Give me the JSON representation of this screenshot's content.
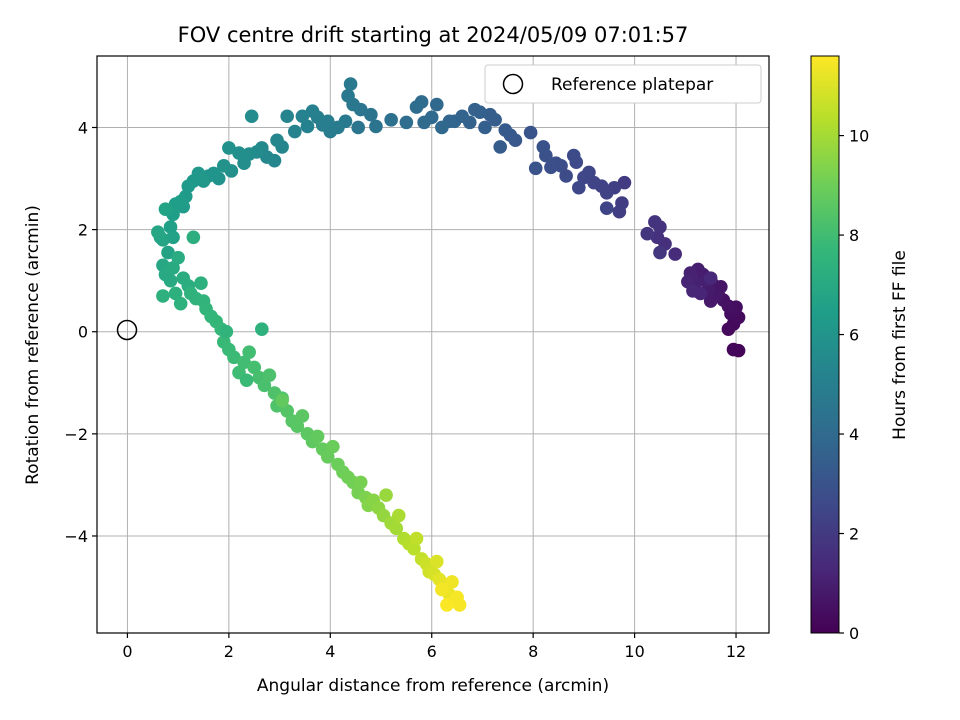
{
  "chart_data": {
    "type": "scatter",
    "title": "FOV centre drift starting at 2024/05/09 07:01:57",
    "xlabel": "Angular distance from reference (arcmin)",
    "ylabel": "Rotation from reference (arcmin)",
    "xlim": [
      -0.6,
      12.65
    ],
    "ylim": [
      -5.9,
      5.4
    ],
    "xticks": [
      0,
      2,
      4,
      6,
      8,
      10,
      12
    ],
    "yticks": [
      -4,
      -2,
      0,
      2,
      4
    ],
    "xtick_labels": [
      "0",
      "2",
      "4",
      "6",
      "8",
      "10",
      "12"
    ],
    "ytick_labels": [
      "−4",
      "−2",
      "0",
      "2",
      "4"
    ],
    "grid": true,
    "legend": {
      "placement": "top-right",
      "entries": [
        "Reference platepar"
      ]
    },
    "reference_point": {
      "x": 0,
      "y": 0,
      "label": "Reference platepar"
    },
    "colorbar": {
      "label": "Hours from first FF file",
      "range": [
        0,
        11.6
      ],
      "ticks": [
        0,
        2,
        4,
        6,
        8,
        10
      ],
      "tick_labels": [
        "0",
        "2",
        "4",
        "6",
        "8",
        "10"
      ],
      "colormap": "viridis",
      "colormap_stops": [
        "#440154",
        "#482878",
        "#3e4989",
        "#31688e",
        "#26828e",
        "#1f9e89",
        "#35b779",
        "#6ece58",
        "#b5de2b",
        "#fde725"
      ]
    },
    "series": [
      {
        "points": [
          [
            12.05,
            -0.37
          ],
          [
            11.95,
            -0.35
          ],
          [
            11.95,
            0.15
          ],
          [
            11.85,
            0.05
          ],
          [
            12.05,
            0.28
          ],
          [
            11.9,
            0.35
          ],
          [
            12.0,
            0.48
          ],
          [
            11.85,
            0.5
          ],
          [
            11.75,
            0.62
          ],
          [
            11.65,
            0.72
          ],
          [
            11.7,
            0.88
          ],
          [
            11.55,
            0.92
          ],
          [
            11.6,
            0.7
          ],
          [
            11.5,
            0.6
          ],
          [
            11.45,
            0.82
          ],
          [
            11.35,
            1.12
          ],
          [
            11.25,
            1.22
          ],
          [
            11.4,
            1.0
          ],
          [
            11.2,
            0.95
          ],
          [
            11.1,
            1.15
          ],
          [
            11.05,
            0.98
          ],
          [
            11.3,
            0.75
          ],
          [
            11.15,
            0.8
          ],
          [
            11.5,
            1.05
          ],
          [
            10.8,
            1.52
          ],
          [
            10.6,
            1.72
          ],
          [
            10.45,
            1.85
          ],
          [
            10.5,
            2.05
          ],
          [
            10.4,
            2.15
          ],
          [
            10.25,
            1.92
          ],
          [
            10.5,
            1.55
          ],
          [
            9.8,
            2.92
          ],
          [
            9.75,
            2.52
          ],
          [
            9.7,
            2.35
          ],
          [
            9.6,
            2.82
          ],
          [
            9.45,
            2.72
          ],
          [
            9.35,
            2.85
          ],
          [
            9.2,
            2.92
          ],
          [
            9.45,
            2.42
          ],
          [
            9.1,
            3.12
          ],
          [
            9.0,
            3.02
          ],
          [
            8.9,
            2.82
          ],
          [
            8.85,
            3.32
          ],
          [
            8.8,
            3.45
          ],
          [
            8.65,
            3.05
          ],
          [
            8.55,
            3.25
          ],
          [
            8.45,
            3.3
          ],
          [
            8.35,
            3.22
          ],
          [
            8.25,
            3.45
          ],
          [
            8.2,
            3.62
          ],
          [
            8.05,
            3.2
          ],
          [
            7.95,
            3.9
          ],
          [
            7.65,
            3.75
          ],
          [
            7.55,
            3.85
          ],
          [
            7.45,
            3.95
          ],
          [
            7.35,
            3.62
          ],
          [
            7.25,
            4.15
          ],
          [
            7.15,
            4.25
          ],
          [
            7.05,
            4.0
          ],
          [
            6.95,
            4.3
          ],
          [
            6.85,
            4.35
          ],
          [
            6.75,
            4.1
          ],
          [
            6.6,
            4.22
          ],
          [
            6.45,
            4.12
          ],
          [
            6.35,
            4.12
          ],
          [
            6.2,
            4.0
          ],
          [
            6.1,
            4.45
          ],
          [
            6.0,
            4.2
          ],
          [
            5.85,
            4.1
          ],
          [
            5.8,
            4.5
          ],
          [
            5.7,
            4.4
          ],
          [
            5.5,
            4.1
          ],
          [
            5.2,
            4.15
          ],
          [
            4.9,
            4.02
          ],
          [
            4.8,
            4.25
          ],
          [
            4.6,
            4.35
          ],
          [
            4.55,
            4.0
          ],
          [
            4.45,
            4.45
          ],
          [
            4.35,
            4.62
          ],
          [
            4.4,
            4.85
          ],
          [
            4.3,
            4.12
          ],
          [
            4.15,
            4.0
          ],
          [
            4.0,
            3.92
          ],
          [
            3.95,
            4.12
          ],
          [
            3.85,
            4.05
          ],
          [
            3.75,
            4.2
          ],
          [
            3.65,
            4.32
          ],
          [
            3.55,
            4.02
          ],
          [
            3.45,
            4.22
          ],
          [
            3.3,
            3.92
          ],
          [
            3.15,
            4.22
          ],
          [
            3.05,
            3.62
          ],
          [
            2.95,
            3.75
          ],
          [
            2.9,
            3.35
          ],
          [
            2.75,
            3.42
          ],
          [
            2.65,
            3.6
          ],
          [
            2.55,
            3.52
          ],
          [
            2.45,
            4.22
          ],
          [
            2.4,
            3.48
          ],
          [
            2.3,
            3.3
          ],
          [
            2.2,
            3.5
          ],
          [
            2.05,
            3.15
          ],
          [
            2.0,
            3.6
          ],
          [
            1.9,
            3.25
          ],
          [
            1.8,
            3.0
          ],
          [
            1.7,
            3.1
          ],
          [
            1.6,
            3.05
          ],
          [
            1.5,
            2.95
          ],
          [
            1.4,
            3.1
          ],
          [
            1.3,
            2.95
          ],
          [
            1.2,
            2.85
          ],
          [
            1.15,
            2.65
          ],
          [
            1.1,
            2.45
          ],
          [
            1.05,
            2.55
          ],
          [
            0.95,
            2.5
          ],
          [
            0.9,
            2.3
          ],
          [
            0.85,
            2.05
          ],
          [
            0.9,
            1.85
          ],
          [
            0.8,
            1.55
          ],
          [
            0.75,
            2.4
          ],
          [
            0.7,
            1.8
          ],
          [
            0.65,
            1.85
          ],
          [
            0.6,
            1.95
          ],
          [
            0.7,
            1.3
          ],
          [
            0.75,
            1.12
          ],
          [
            0.85,
            1.0
          ],
          [
            0.9,
            1.25
          ],
          [
            1.0,
            1.45
          ],
          [
            1.1,
            1.05
          ],
          [
            1.2,
            0.9
          ],
          [
            1.3,
            1.85
          ],
          [
            0.7,
            0.7
          ],
          [
            0.95,
            0.75
          ],
          [
            1.05,
            0.55
          ],
          [
            1.25,
            0.75
          ],
          [
            1.35,
            0.65
          ],
          [
            1.5,
            0.6
          ],
          [
            1.55,
            0.45
          ],
          [
            1.65,
            0.3
          ],
          [
            1.75,
            0.2
          ],
          [
            1.85,
            0.05
          ],
          [
            1.9,
            -0.2
          ],
          [
            2.0,
            -0.35
          ],
          [
            2.1,
            -0.5
          ],
          [
            2.2,
            -0.8
          ],
          [
            2.3,
            -0.6
          ],
          [
            2.4,
            -0.4
          ],
          [
            2.5,
            -0.7
          ],
          [
            2.6,
            -0.9
          ],
          [
            2.7,
            -1.05
          ],
          [
            2.8,
            -0.85
          ],
          [
            2.9,
            -1.2
          ],
          [
            2.95,
            -1.45
          ],
          [
            3.05,
            -1.3
          ],
          [
            3.15,
            -1.55
          ],
          [
            3.25,
            -1.75
          ],
          [
            3.35,
            -1.85
          ],
          [
            3.45,
            -1.65
          ],
          [
            3.55,
            -2.0
          ],
          [
            3.65,
            -2.15
          ],
          [
            3.75,
            -2.05
          ],
          [
            3.85,
            -2.3
          ],
          [
            3.95,
            -2.45
          ],
          [
            4.05,
            -2.25
          ],
          [
            4.15,
            -2.6
          ],
          [
            4.25,
            -2.75
          ],
          [
            4.35,
            -2.85
          ],
          [
            4.45,
            -2.95
          ],
          [
            4.55,
            -3.15
          ],
          [
            4.6,
            -2.95
          ],
          [
            4.7,
            -3.25
          ],
          [
            4.75,
            -3.4
          ],
          [
            4.85,
            -3.3
          ],
          [
            4.95,
            -3.45
          ],
          [
            5.05,
            -3.6
          ],
          [
            5.1,
            -3.2
          ],
          [
            5.2,
            -3.75
          ],
          [
            5.3,
            -3.85
          ],
          [
            5.35,
            -3.6
          ],
          [
            5.45,
            -4.05
          ],
          [
            5.55,
            -4.15
          ],
          [
            5.65,
            -4.25
          ],
          [
            5.7,
            -4.05
          ],
          [
            5.8,
            -4.45
          ],
          [
            5.9,
            -4.55
          ],
          [
            5.95,
            -4.7
          ],
          [
            6.05,
            -4.75
          ],
          [
            6.1,
            -4.5
          ],
          [
            6.15,
            -4.85
          ],
          [
            6.25,
            -4.95
          ],
          [
            6.35,
            -5.15
          ],
          [
            6.4,
            -4.9
          ],
          [
            6.5,
            -5.2
          ],
          [
            6.55,
            -5.35
          ],
          [
            6.3,
            -5.35
          ],
          [
            6.2,
            -5.05
          ],
          [
            3.05,
            -1.35
          ],
          [
            2.35,
            -0.95
          ],
          [
            1.95,
            0.0
          ],
          [
            2.65,
            0.05
          ],
          [
            1.45,
            0.95
          ]
        ],
        "hours": [
          0.1,
          0.15,
          0.25,
          0.3,
          0.35,
          0.4,
          0.45,
          0.5,
          0.55,
          0.6,
          0.65,
          0.7,
          0.75,
          0.8,
          0.85,
          0.9,
          0.95,
          1.0,
          1.05,
          1.1,
          1.15,
          1.2,
          1.25,
          1.3,
          1.45,
          1.55,
          1.65,
          1.7,
          1.75,
          1.8,
          1.85,
          2.05,
          2.1,
          2.15,
          2.2,
          2.25,
          2.3,
          2.35,
          2.4,
          2.45,
          2.5,
          2.55,
          2.6,
          2.65,
          2.7,
          2.75,
          2.8,
          2.85,
          2.9,
          2.95,
          3.0,
          3.05,
          3.2,
          3.25,
          3.3,
          3.35,
          3.4,
          3.45,
          3.5,
          3.55,
          3.6,
          3.65,
          3.7,
          3.75,
          3.8,
          3.85,
          3.9,
          3.95,
          4.0,
          4.05,
          4.1,
          4.15,
          4.3,
          4.4,
          4.45,
          4.5,
          4.55,
          4.6,
          4.65,
          4.7,
          4.75,
          4.8,
          4.85,
          4.9,
          4.95,
          5.0,
          5.05,
          5.1,
          5.15,
          5.2,
          5.25,
          5.3,
          5.35,
          5.4,
          5.45,
          5.5,
          5.55,
          5.6,
          5.65,
          5.7,
          5.75,
          5.8,
          5.85,
          5.9,
          5.95,
          6.0,
          6.05,
          6.1,
          6.15,
          6.2,
          6.25,
          6.3,
          6.35,
          6.4,
          6.45,
          6.5,
          6.55,
          6.6,
          6.65,
          6.7,
          6.75,
          6.8,
          6.85,
          6.9,
          6.95,
          7.0,
          7.05,
          7.1,
          7.15,
          7.2,
          7.25,
          7.3,
          7.35,
          7.4,
          7.45,
          7.5,
          7.55,
          7.6,
          7.65,
          7.7,
          7.75,
          7.8,
          7.85,
          7.9,
          7.95,
          8.0,
          8.05,
          8.1,
          8.15,
          8.2,
          8.25,
          8.3,
          8.35,
          8.4,
          8.45,
          8.5,
          8.55,
          8.6,
          8.65,
          8.7,
          8.75,
          8.8,
          8.85,
          8.9,
          8.95,
          9.0,
          9.05,
          9.1,
          9.15,
          9.2,
          9.3,
          9.4,
          9.5,
          9.6,
          9.7,
          9.8,
          9.9,
          10.0,
          10.1,
          10.2,
          10.3,
          10.4,
          10.5,
          10.6,
          10.7,
          10.8,
          10.9,
          11.0,
          11.1,
          11.2,
          11.3,
          11.35,
          11.45,
          11.5,
          11.55,
          11.4,
          8.75,
          7.85,
          7.55,
          7.4,
          7.3
        ]
      }
    ]
  }
}
